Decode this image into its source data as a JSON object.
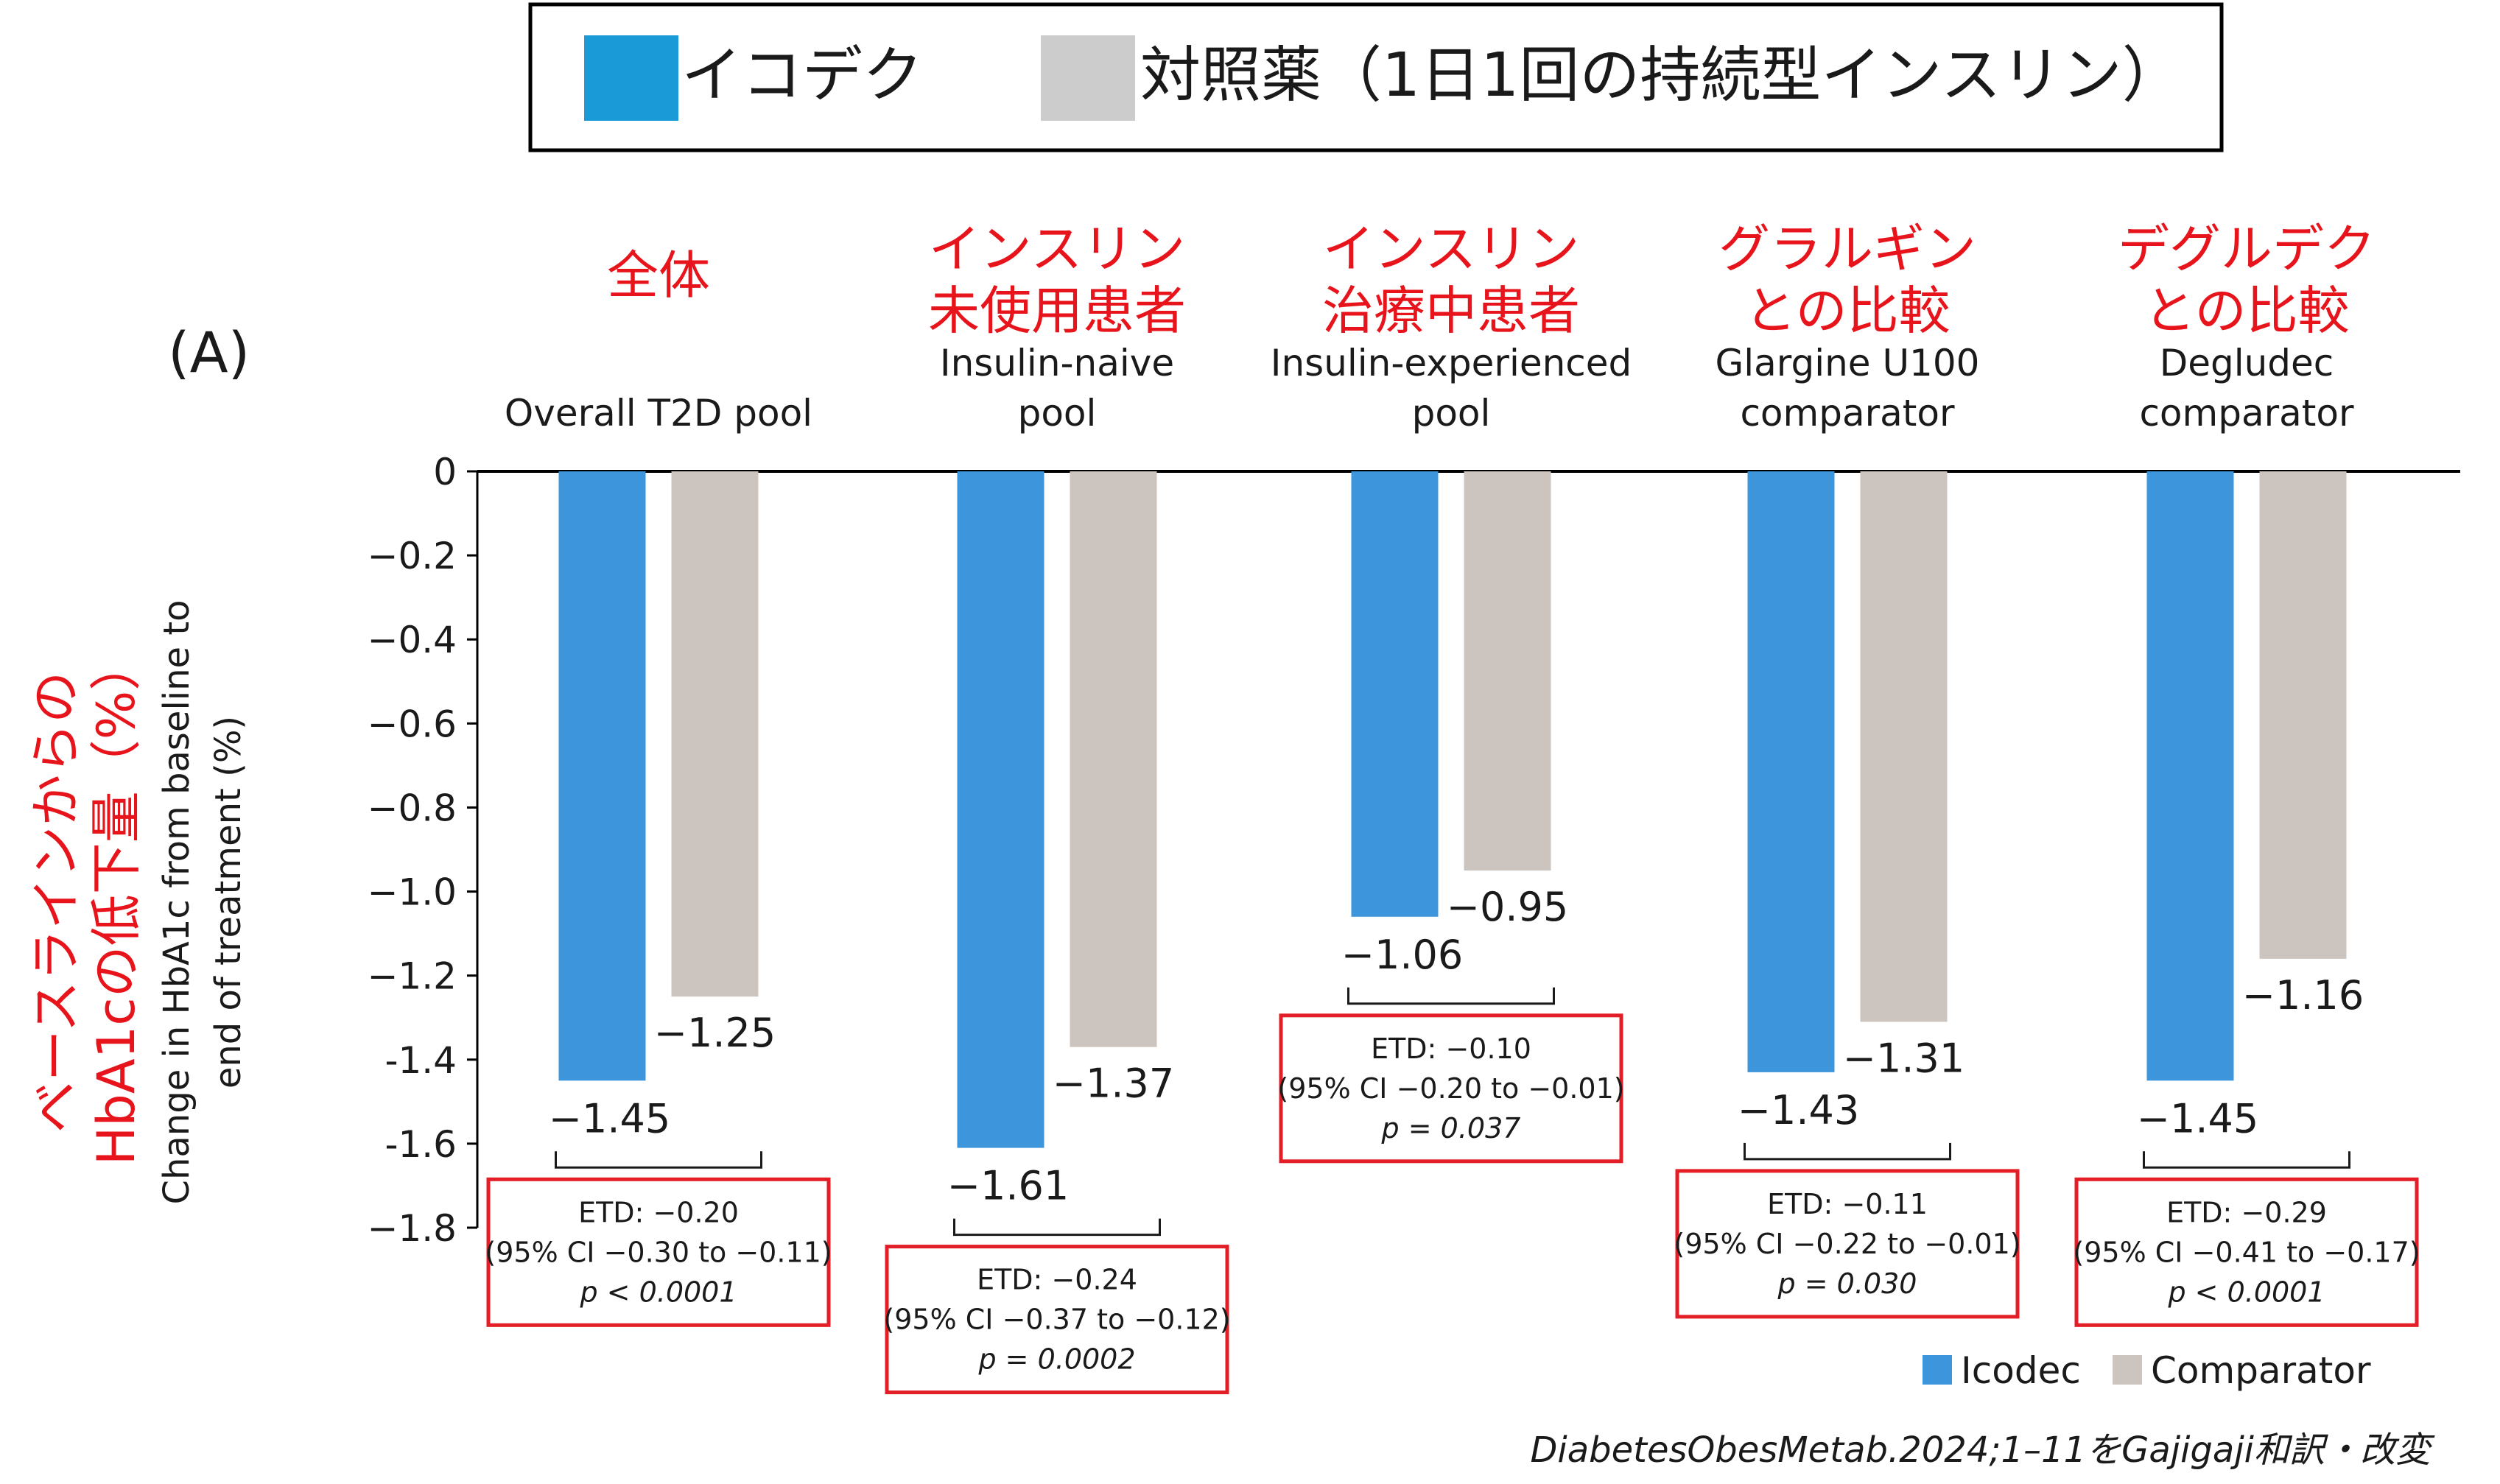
{
  "top_legend": {
    "items": [
      {
        "label": "イコデク",
        "color": "#1a9bd7"
      },
      {
        "label": "対照薬（1日1回の持続型インスリン）",
        "color": "#cccccc"
      }
    ]
  },
  "panel_label": "(A)",
  "y_axis": {
    "jp_label_line1": "ベースラインからの",
    "jp_label_line2": "HbA1cの低下量（%）",
    "en_label_line1": "Change in HbA1c from baseline to",
    "en_label_line2": "end of treatment (%)"
  },
  "chart_data": {
    "type": "bar",
    "ylim": [
      -1.8,
      0
    ],
    "yticks": [
      0,
      -0.2,
      -0.4,
      -0.6,
      -0.8,
      -1.0,
      -1.2,
      -1.4,
      -1.6,
      -1.8
    ],
    "ytick_labels": [
      "0",
      "−0.2",
      "−0.4",
      "−0.6",
      "−0.8",
      "−1.0",
      "−1.2",
      "-1.4",
      "-1.6",
      "−1.8"
    ],
    "categories": [
      "Overall T2D pool",
      "Insulin-naive pool",
      "Insulin-experienced pool",
      "Glargine U100 comparator",
      "Degludec comparator"
    ],
    "series": [
      {
        "name": "Icodec",
        "color": "#3d96db",
        "values": [
          -1.45,
          -1.61,
          -1.06,
          -1.43,
          -1.45
        ],
        "value_labels": [
          "−1.45",
          "−1.61",
          "−1.06",
          "−1.43",
          "−1.45"
        ]
      },
      {
        "name": "Comparator",
        "color": "#ccc4be",
        "values": [
          -1.25,
          -1.37,
          -0.95,
          -1.31,
          -1.16
        ],
        "value_labels": [
          "−1.25",
          "−1.37",
          "−0.95",
          "−1.31",
          "−1.16"
        ]
      }
    ],
    "groups": [
      {
        "jp_line1": "全体",
        "jp_line2": "",
        "en_line1": "",
        "en_line2": "Overall T2D pool",
        "etd": "ETD: −0.20",
        "ci": "(95% CI −0.30 to −0.11)",
        "p": "p < 0.0001"
      },
      {
        "jp_line1": "インスリン",
        "jp_line2": "未使用患者",
        "en_line1": "Insulin-naive",
        "en_line2": "pool",
        "etd": "ETD: −0.24",
        "ci": "(95% CI −0.37 to −0.12)",
        "p": "p = 0.0002"
      },
      {
        "jp_line1": "インスリン",
        "jp_line2": "治療中患者",
        "en_line1": "Insulin-experienced",
        "en_line2": "pool",
        "etd": "ETD: −0.10",
        "ci": "(95% CI −0.20 to −0.01)",
        "p": "p = 0.037"
      },
      {
        "jp_line1": "グラルギン",
        "jp_line2": "との比較",
        "en_line1": "Glargine U100",
        "en_line2": "comparator",
        "etd": "ETD: −0.11",
        "ci": "(95% CI −0.22 to −0.01)",
        "p": "p = 0.030"
      },
      {
        "jp_line1": "デグルデク",
        "jp_line2": "との比較",
        "en_line1": "Degludec",
        "en_line2": "comparator",
        "etd": "ETD: −0.29",
        "ci": "(95% CI −0.41 to −0.17)",
        "p": "p < 0.0001"
      }
    ],
    "legend": [
      {
        "name": "Icodec",
        "color": "#3d96db"
      },
      {
        "name": "Comparator",
        "color": "#ccc4be"
      }
    ]
  },
  "source_note": "DiabetesObesMetab.2024;1–11をGajigaji和訳・改変",
  "colors": {
    "annotation_red": "#e8141c",
    "box_red": "#e41e26",
    "axis": "#000000",
    "text": "#1a1a1a"
  }
}
